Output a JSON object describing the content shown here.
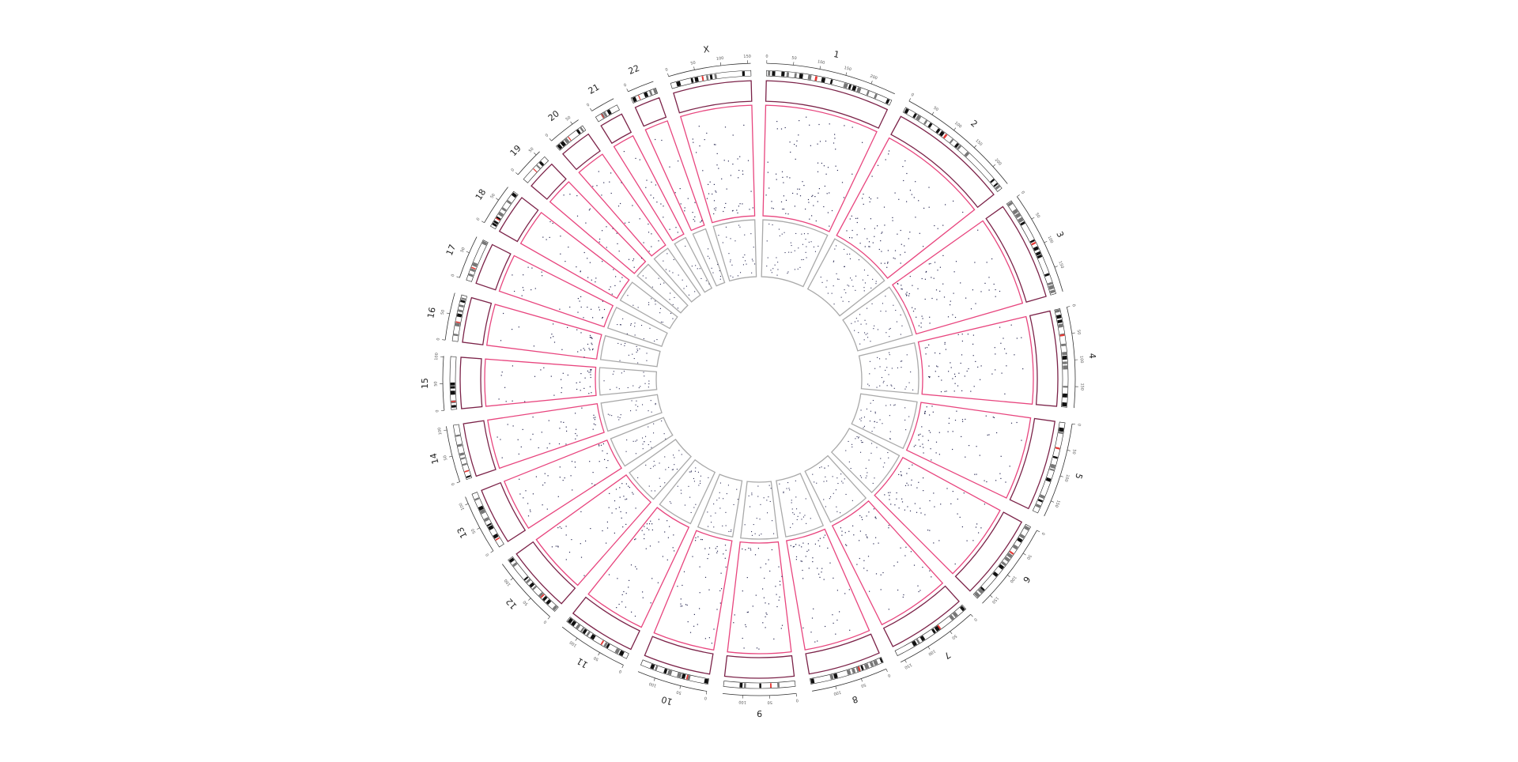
{
  "chromosomes": [
    {
      "name": "1",
      "size_mb": 248,
      "ticks": [
        "0",
        "50",
        "100",
        "150",
        "200"
      ],
      "red": 0.38
    },
    {
      "name": "2",
      "size_mb": 242,
      "ticks": [
        "0",
        "50",
        "100",
        "150",
        "200"
      ],
      "red": 0.38
    },
    {
      "name": "3",
      "size_mb": 198,
      "ticks": [
        "0",
        "50",
        "100",
        "150"
      ],
      "red": 0.46
    },
    {
      "name": "4",
      "size_mb": 190,
      "ticks": [
        "0",
        "50",
        "100",
        "150"
      ],
      "red": 0.26
    },
    {
      "name": "5",
      "size_mb": 181,
      "ticks": [
        "0",
        "50",
        "100",
        "150"
      ],
      "red": 0.27
    },
    {
      "name": "6",
      "size_mb": 171,
      "ticks": [
        "0",
        "50",
        "100",
        "150"
      ],
      "red": 0.35
    },
    {
      "name": "7",
      "size_mb": 159,
      "ticks": [
        "0",
        "50",
        "100",
        "150"
      ],
      "red": 0.38
    },
    {
      "name": "8",
      "size_mb": 145,
      "ticks": [
        "0",
        "50",
        "100"
      ],
      "red": 0.32
    },
    {
      "name": "9",
      "size_mb": 138,
      "ticks": [
        "0",
        "50",
        "100"
      ],
      "red": 0.33
    },
    {
      "name": "10",
      "size_mb": 134,
      "ticks": [
        "0",
        "50",
        "100"
      ],
      "red": 0.3
    },
    {
      "name": "11",
      "size_mb": 135,
      "ticks": [
        "0",
        "50",
        "100"
      ],
      "red": 0.4
    },
    {
      "name": "12",
      "size_mb": 133,
      "ticks": [
        "0",
        "50",
        "100"
      ],
      "red": 0.27
    },
    {
      "name": "13",
      "size_mb": 114,
      "ticks": [
        "0",
        "50",
        "100"
      ],
      "red": 0.12
    },
    {
      "name": "14",
      "size_mb": 107,
      "ticks": [
        "0",
        "50",
        "100"
      ],
      "red": 0.13
    },
    {
      "name": "15",
      "size_mb": 102,
      "ticks": [
        "0",
        "50",
        "100"
      ],
      "red": 0.14
    },
    {
      "name": "16",
      "size_mb": 90,
      "ticks": [
        "0",
        "50"
      ],
      "red": 0.4
    },
    {
      "name": "17",
      "size_mb": 83,
      "ticks": [
        "0",
        "50"
      ],
      "red": 0.3
    },
    {
      "name": "18",
      "size_mb": 80,
      "ticks": [
        "0",
        "50"
      ],
      "red": 0.22
    },
    {
      "name": "19",
      "size_mb": 59,
      "ticks": [
        "0",
        "50"
      ],
      "red": 0.45
    },
    {
      "name": "20",
      "size_mb": 64,
      "ticks": [
        "0",
        "50"
      ],
      "red": 0.44
    },
    {
      "name": "21",
      "size_mb": 47,
      "ticks": [
        "0"
      ],
      "red": 0.25
    },
    {
      "name": "22",
      "size_mb": 51,
      "ticks": [
        "0"
      ],
      "red": 0.28
    },
    {
      "name": "X",
      "size_mb": 156,
      "ticks": [
        "0",
        "50",
        "100",
        "150"
      ],
      "red": 0.39
    }
  ],
  "colors": {
    "outer_track": "#7b2248",
    "middle_track": "#e8457e",
    "inner_track": "#a9a9a9",
    "centromere": "#e53935",
    "band_dark": "#111111",
    "band_mid": "#777777",
    "points": "#2b2b55"
  }
}
